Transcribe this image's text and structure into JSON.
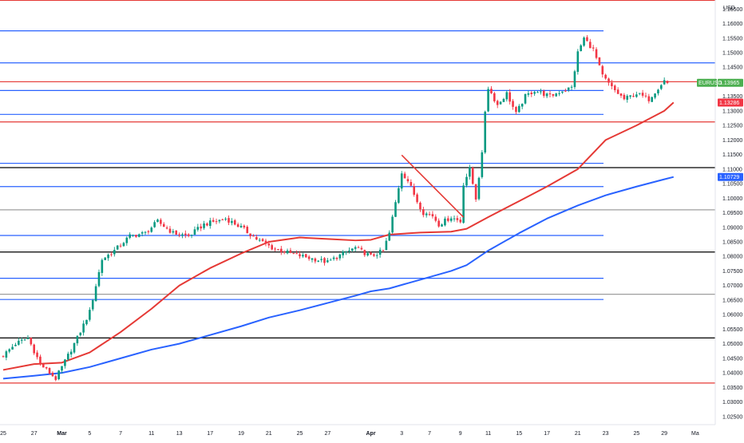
{
  "chart_data": {
    "type": "candlestick",
    "symbol": "EURUSD",
    "currency": "USD",
    "ylim": [
      1.0222,
      1.1681
    ],
    "y_ticks": [
      "1.16500",
      "1.16000",
      "1.15500",
      "1.15000",
      "1.14500",
      "1.14000",
      "1.13500",
      "1.13000",
      "1.12500",
      "1.12000",
      "1.11500",
      "1.11000",
      "1.10500",
      "1.10000",
      "1.09500",
      "1.09000",
      "1.08500",
      "1.08000",
      "1.07500",
      "1.07000",
      "1.06500",
      "1.06000",
      "1.05500",
      "1.05000",
      "1.04500",
      "1.04000",
      "1.03500",
      "1.03000",
      "1.02500"
    ],
    "x_ticks": [
      {
        "label": "25",
        "bar": 0,
        "bold": false
      },
      {
        "label": "27",
        "bar": 10,
        "bold": false
      },
      {
        "label": "Mar",
        "bar": 19,
        "bold": true
      },
      {
        "label": "5",
        "bar": 28,
        "bold": false
      },
      {
        "label": "7",
        "bar": 38,
        "bold": false
      },
      {
        "label": "11",
        "bar": 48,
        "bold": false
      },
      {
        "label": "13",
        "bar": 57,
        "bold": false
      },
      {
        "label": "17",
        "bar": 67,
        "bold": false
      },
      {
        "label": "19",
        "bar": 77,
        "bold": false
      },
      {
        "label": "21",
        "bar": 86,
        "bold": false
      },
      {
        "label": "25",
        "bar": 96,
        "bold": false
      },
      {
        "label": "27",
        "bar": 105,
        "bold": false
      },
      {
        "label": "Apr",
        "bar": 119,
        "bold": true
      },
      {
        "label": "3",
        "bar": 129,
        "bold": false
      },
      {
        "label": "7",
        "bar": 138,
        "bold": false
      },
      {
        "label": "9",
        "bar": 148,
        "bold": false
      },
      {
        "label": "11",
        "bar": 157,
        "bold": false
      },
      {
        "label": "15",
        "bar": 167,
        "bold": false
      },
      {
        "label": "17",
        "bar": 176,
        "bold": false
      },
      {
        "label": "21",
        "bar": 186,
        "bold": false
      },
      {
        "label": "23",
        "bar": 195,
        "bold": false
      },
      {
        "label": "25",
        "bar": 205,
        "bold": false
      },
      {
        "label": "29",
        "bar": 214,
        "bold": false
      },
      {
        "label": "Ma",
        "bar": 224,
        "bold": false
      }
    ],
    "price_tags": [
      {
        "symbol": "EURUSD",
        "value": "1.13965",
        "price": 1.13965,
        "color": "#4caf50"
      },
      {
        "value": "1.13286",
        "price": 1.13286,
        "color": "#f23645"
      },
      {
        "value": "1.10729",
        "price": 1.10729,
        "color": "#2962ff"
      }
    ],
    "horizontal_levels": [
      {
        "price": 1.168,
        "color": "#e53935",
        "extend": "full"
      },
      {
        "price": 1.1575,
        "color": "#2962ff",
        "extend": "partial"
      },
      {
        "price": 1.1465,
        "color": "#2962ff",
        "extend": "full"
      },
      {
        "price": 1.14,
        "color": "#e53935",
        "extend": "full"
      },
      {
        "price": 1.137,
        "color": "#2962ff",
        "extend": "partial"
      },
      {
        "price": 1.1288,
        "color": "#2962ff",
        "extend": "partial"
      },
      {
        "price": 1.1262,
        "color": "#e53935",
        "extend": "full"
      },
      {
        "price": 1.112,
        "color": "#2962ff",
        "extend": "partial"
      },
      {
        "price": 1.1105,
        "color": "#000000",
        "extend": "full"
      },
      {
        "price": 1.104,
        "color": "#2962ff",
        "extend": "partial"
      },
      {
        "price": 1.096,
        "color": "#9e9e9e",
        "extend": "full"
      },
      {
        "price": 1.0872,
        "color": "#2962ff",
        "extend": "partial"
      },
      {
        "price": 1.0815,
        "color": "#000000",
        "extend": "full"
      },
      {
        "price": 1.0725,
        "color": "#2962ff",
        "extend": "partial"
      },
      {
        "price": 1.067,
        "color": "#9e9e9e",
        "extend": "full"
      },
      {
        "price": 1.0652,
        "color": "#2962ff",
        "extend": "partial"
      },
      {
        "price": 1.052,
        "color": "#000000",
        "extend": "full"
      },
      {
        "price": 1.0365,
        "color": "#e53935",
        "extend": "full"
      }
    ],
    "trendline": {
      "from": {
        "bar": 129,
        "price": 1.1148
      },
      "to": {
        "bar": 149,
        "price": 1.0935
      },
      "color": "#e53935"
    },
    "anchors": [
      [
        0,
        1.046
      ],
      [
        4,
        1.05
      ],
      [
        8,
        1.052
      ],
      [
        12,
        1.043
      ],
      [
        17,
        1.038
      ],
      [
        19,
        1.042
      ],
      [
        24,
        1.052
      ],
      [
        28,
        1.061
      ],
      [
        32,
        1.079
      ],
      [
        36,
        1.082
      ],
      [
        41,
        1.087
      ],
      [
        46,
        1.088
      ],
      [
        50,
        1.092
      ],
      [
        55,
        1.088
      ],
      [
        60,
        1.087
      ],
      [
        65,
        1.091
      ],
      [
        72,
        1.093
      ],
      [
        77,
        1.09
      ],
      [
        82,
        1.086
      ],
      [
        87,
        1.083
      ],
      [
        93,
        1.081
      ],
      [
        97,
        1.08
      ],
      [
        101,
        1.079
      ],
      [
        105,
        1.078
      ],
      [
        110,
        1.081
      ],
      [
        114,
        1.083
      ],
      [
        119,
        1.08
      ],
      [
        123,
        1.082
      ],
      [
        125,
        1.088
      ],
      [
        129,
        1.109
      ],
      [
        131,
        1.106
      ],
      [
        134,
        1.099
      ],
      [
        136,
        1.095
      ],
      [
        139,
        1.094
      ],
      [
        141,
        1.091
      ],
      [
        145,
        1.0935
      ],
      [
        148,
        1.092
      ],
      [
        149,
        1.105
      ],
      [
        151,
        1.11
      ],
      [
        153,
        1.1
      ],
      [
        155,
        1.115
      ],
      [
        156,
        1.13
      ],
      [
        157,
        1.138
      ],
      [
        160,
        1.132
      ],
      [
        163,
        1.136
      ],
      [
        166,
        1.129
      ],
      [
        169,
        1.135
      ],
      [
        172,
        1.137
      ],
      [
        177,
        1.135
      ],
      [
        181,
        1.137
      ],
      [
        184,
        1.138
      ],
      [
        186,
        1.15
      ],
      [
        188,
        1.155
      ],
      [
        191,
        1.151
      ],
      [
        194,
        1.142
      ],
      [
        197,
        1.138
      ],
      [
        201,
        1.134
      ],
      [
        205,
        1.136
      ],
      [
        209,
        1.134
      ],
      [
        212,
        1.138
      ],
      [
        214,
        1.1405
      ],
      [
        215,
        1.1395
      ]
    ],
    "moving_averages": [
      {
        "name": "",
        "color": "#e53935",
        "points": [
          [
            0,
            1.041
          ],
          [
            10,
            1.043
          ],
          [
            19,
            1.0435
          ],
          [
            28,
            1.047
          ],
          [
            38,
            1.054
          ],
          [
            48,
            1.062
          ],
          [
            57,
            1.07
          ],
          [
            67,
            1.076
          ],
          [
            77,
            1.081
          ],
          [
            86,
            1.085
          ],
          [
            96,
            1.0865
          ],
          [
            105,
            1.086
          ],
          [
            114,
            1.0855
          ],
          [
            119,
            1.0857
          ],
          [
            125,
            1.0875
          ],
          [
            135,
            1.0882
          ],
          [
            145,
            1.0885
          ],
          [
            150,
            1.0895
          ],
          [
            157,
            1.0935
          ],
          [
            167,
            1.099
          ],
          [
            176,
            1.104
          ],
          [
            186,
            1.11
          ],
          [
            195,
            1.12
          ],
          [
            205,
            1.125
          ],
          [
            214,
            1.13
          ],
          [
            217,
            1.1329
          ]
        ]
      },
      {
        "name": "",
        "color": "#2962ff",
        "points": [
          [
            0,
            1.038
          ],
          [
            10,
            1.039
          ],
          [
            19,
            1.04
          ],
          [
            28,
            1.042
          ],
          [
            38,
            1.045
          ],
          [
            48,
            1.048
          ],
          [
            57,
            1.05
          ],
          [
            67,
            1.053
          ],
          [
            77,
            1.056
          ],
          [
            86,
            1.059
          ],
          [
            96,
            1.0615
          ],
          [
            105,
            1.064
          ],
          [
            114,
            1.0665
          ],
          [
            119,
            1.068
          ],
          [
            125,
            1.069
          ],
          [
            135,
            1.072
          ],
          [
            145,
            1.075
          ],
          [
            150,
            1.077
          ],
          [
            157,
            1.082
          ],
          [
            167,
            1.088
          ],
          [
            176,
            1.093
          ],
          [
            186,
            1.0975
          ],
          [
            195,
            1.101
          ],
          [
            205,
            1.104
          ],
          [
            214,
            1.1065
          ],
          [
            217,
            1.1073
          ]
        ]
      }
    ]
  }
}
